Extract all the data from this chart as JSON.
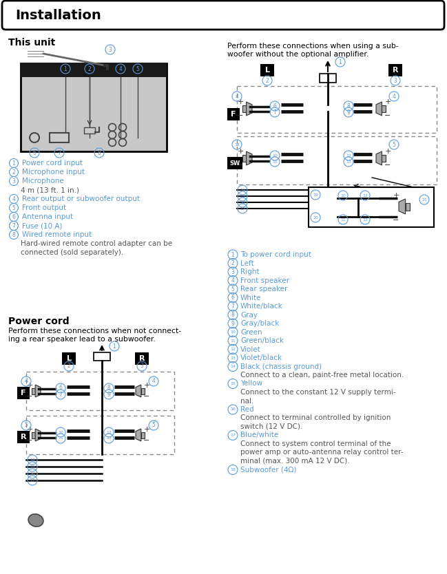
{
  "title": "Installation",
  "bg_color": "#ffffff",
  "section1_title": "This unit",
  "section2_title": "Power cord",
  "left_items": [
    [
      "1",
      "Power cord input",
      false
    ],
    [
      "2",
      "Microphone input",
      false
    ],
    [
      "3",
      "Microphone",
      false
    ],
    [
      "",
      "4 m (13 ft. 1 in.)",
      false
    ],
    [
      "4",
      "Rear output or subwoofer output",
      false
    ],
    [
      "5",
      "Front output",
      false
    ],
    [
      "6",
      "Antenna input",
      false
    ],
    [
      "7",
      "Fuse (10 A)",
      false
    ],
    [
      "8",
      "Wired remote input",
      false
    ],
    [
      "",
      "Hard-wired remote control adapter can be",
      false
    ],
    [
      "",
      "connected (sold separately).",
      false
    ]
  ],
  "right_items": [
    [
      "1",
      "To power cord input"
    ],
    [
      "2",
      "Left"
    ],
    [
      "3",
      "Right"
    ],
    [
      "4",
      "Front speaker"
    ],
    [
      "5",
      "Rear speaker"
    ],
    [
      "6",
      "White"
    ],
    [
      "7",
      "White/black"
    ],
    [
      "8",
      "Gray"
    ],
    [
      "9",
      "Gray/black"
    ],
    [
      "10",
      "Green"
    ],
    [
      "11",
      "Green/black"
    ],
    [
      "12",
      "Violet"
    ],
    [
      "13",
      "Violet/black"
    ],
    [
      "14",
      "Black (chassis ground)"
    ],
    [
      "",
      "Connect to a clean, paint-free metal location."
    ],
    [
      "15",
      "Yellow"
    ],
    [
      "",
      "Connect to the constant 12 V supply termi-"
    ],
    [
      "",
      "nal."
    ],
    [
      "16",
      "Red"
    ],
    [
      "",
      "Connect to terminal controlled by ignition"
    ],
    [
      "",
      "switch (12 V DC)."
    ],
    [
      "17",
      "Blue/white"
    ],
    [
      "",
      "Connect to system control terminal of the"
    ],
    [
      "",
      "power amp or auto-antenna relay control ter-"
    ],
    [
      "",
      "minal (max. 300 mA 12 V DC)."
    ],
    [
      "18",
      "Subwoofer (4Ω)"
    ]
  ],
  "powercord_text1": "Perform these connections when not connect-",
  "powercord_text2": "ing a rear speaker lead to a subwoofer.",
  "subwoofer_text1": "Perform these connections when using a sub-",
  "subwoofer_text2": "woofer without the optional amplifier.",
  "circle_color": "#5b9bd5",
  "text_color": "#000000",
  "label_color": "#5b9bd5",
  "gray_text": "#555555"
}
